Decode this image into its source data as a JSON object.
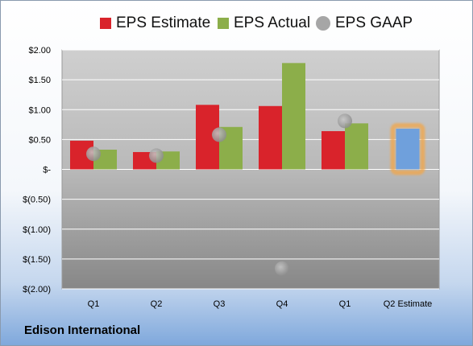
{
  "company": "Edison International",
  "chart_data": {
    "type": "bar",
    "categories": [
      "Q1",
      "Q2",
      "Q3",
      "Q4",
      "Q1",
      "Q2 Estimate"
    ],
    "series": [
      {
        "name": "EPS Estimate",
        "color": "#d9232b",
        "values": [
          0.48,
          0.29,
          1.08,
          1.06,
          0.64,
          null
        ]
      },
      {
        "name": "EPS Actual",
        "color": "#8cae4a",
        "values": [
          0.33,
          0.3,
          0.71,
          1.78,
          0.77,
          null
        ]
      },
      {
        "name": "EPS GAAP",
        "color": "#a6a6a6",
        "type": "scatter",
        "values": [
          0.26,
          0.23,
          0.58,
          -1.66,
          0.81,
          null
        ]
      }
    ],
    "projection": {
      "category": "Q2 Estimate",
      "value": 0.68,
      "color": "#6fa0dc",
      "glow": "#f3a646"
    },
    "yticks": [
      {
        "value": 2.0,
        "label": "$2.00"
      },
      {
        "value": 1.5,
        "label": "$1.50"
      },
      {
        "value": 1.0,
        "label": "$1.00"
      },
      {
        "value": 0.5,
        "label": "$0.50"
      },
      {
        "value": 0.0,
        "label": "$-"
      },
      {
        "value": -0.5,
        "label": "$(0.50)"
      },
      {
        "value": -1.0,
        "label": "$(1.00)"
      },
      {
        "value": -1.5,
        "label": "$(1.50)"
      },
      {
        "value": -2.0,
        "label": "$(2.00)"
      }
    ],
    "ylim": [
      -2.0,
      2.0
    ],
    "grid": true,
    "legend_position": "top"
  }
}
